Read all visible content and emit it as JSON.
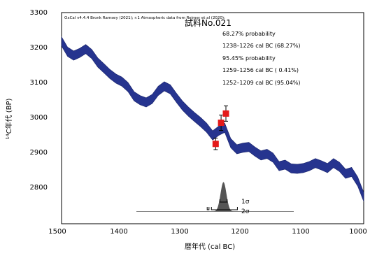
{
  "chart_data": {
    "type": "line",
    "credit": "OxCal v4.4.4 Bronk Ramsey (2021); r:1 Atmospheric data from Reimer et al (2020);",
    "xlabel": "暦年代 (cal BC)",
    "ylabel": "¹⁴C年代 (BP)",
    "xlim": [
      1500,
      1000
    ],
    "ylim": [
      2750,
      3300
    ],
    "x_ticks": [
      "1500",
      "1400",
      "1300",
      "1200",
      "1100",
      "1000"
    ],
    "y_ticks": [
      "3300",
      "3200",
      "3100",
      "3000",
      "2900",
      "2800"
    ],
    "grid": false,
    "colors": {
      "curve": "#26348f",
      "measurement": "#e41a1a",
      "distribution": "#555555"
    },
    "calibration_curve": {
      "x": [
        1500,
        1490,
        1480,
        1470,
        1460,
        1450,
        1440,
        1430,
        1420,
        1410,
        1400,
        1390,
        1380,
        1370,
        1360,
        1350,
        1340,
        1330,
        1320,
        1310,
        1300,
        1290,
        1280,
        1270,
        1260,
        1250,
        1240,
        1230,
        1220,
        1210,
        1200,
        1190,
        1180,
        1170,
        1160,
        1150,
        1140,
        1130,
        1120,
        1110,
        1100,
        1090,
        1080,
        1070,
        1060,
        1050,
        1040,
        1030,
        1020,
        1010,
        1000
      ],
      "y": [
        3225,
        3198,
        3188,
        3195,
        3205,
        3192,
        3170,
        3155,
        3140,
        3128,
        3120,
        3106,
        3082,
        3072,
        3066,
        3075,
        3096,
        3108,
        3100,
        3078,
        3058,
        3042,
        3028,
        3015,
        3000,
        2980,
        2992,
        3000,
        2960,
        2944,
        2948,
        2950,
        2938,
        2928,
        2932,
        2922,
        2900,
        2904,
        2894,
        2893,
        2895,
        2900,
        2908,
        2902,
        2895,
        2908,
        2898,
        2880,
        2885,
        2860,
        2820
      ],
      "band": 12
    },
    "measurements": [
      {
        "x": 1245,
        "y": 2958,
        "err": 15
      },
      {
        "x": 1236,
        "y": 3013,
        "err": 20
      },
      {
        "x": 1228,
        "y": 3037,
        "err": 20
      }
    ],
    "sample_label": "試料No.021",
    "probability_text": [
      "68.27% probability",
      "1238–1226 cal BC (68.27%)",
      "95.45% probability",
      "1259–1256 cal BC ( 0.41%)",
      "1252–1209 cal BC (95.04%)"
    ],
    "distribution": {
      "x": [
        1265,
        1200
      ],
      "peak": 1232,
      "baseline_y": 2782
    },
    "range_1sigma": [
      [
        1238,
        1226
      ]
    ],
    "range_2sigma": [
      [
        1259,
        1256
      ],
      [
        1252,
        1209
      ]
    ],
    "sigma_labels": [
      "1σ",
      "2σ"
    ]
  }
}
